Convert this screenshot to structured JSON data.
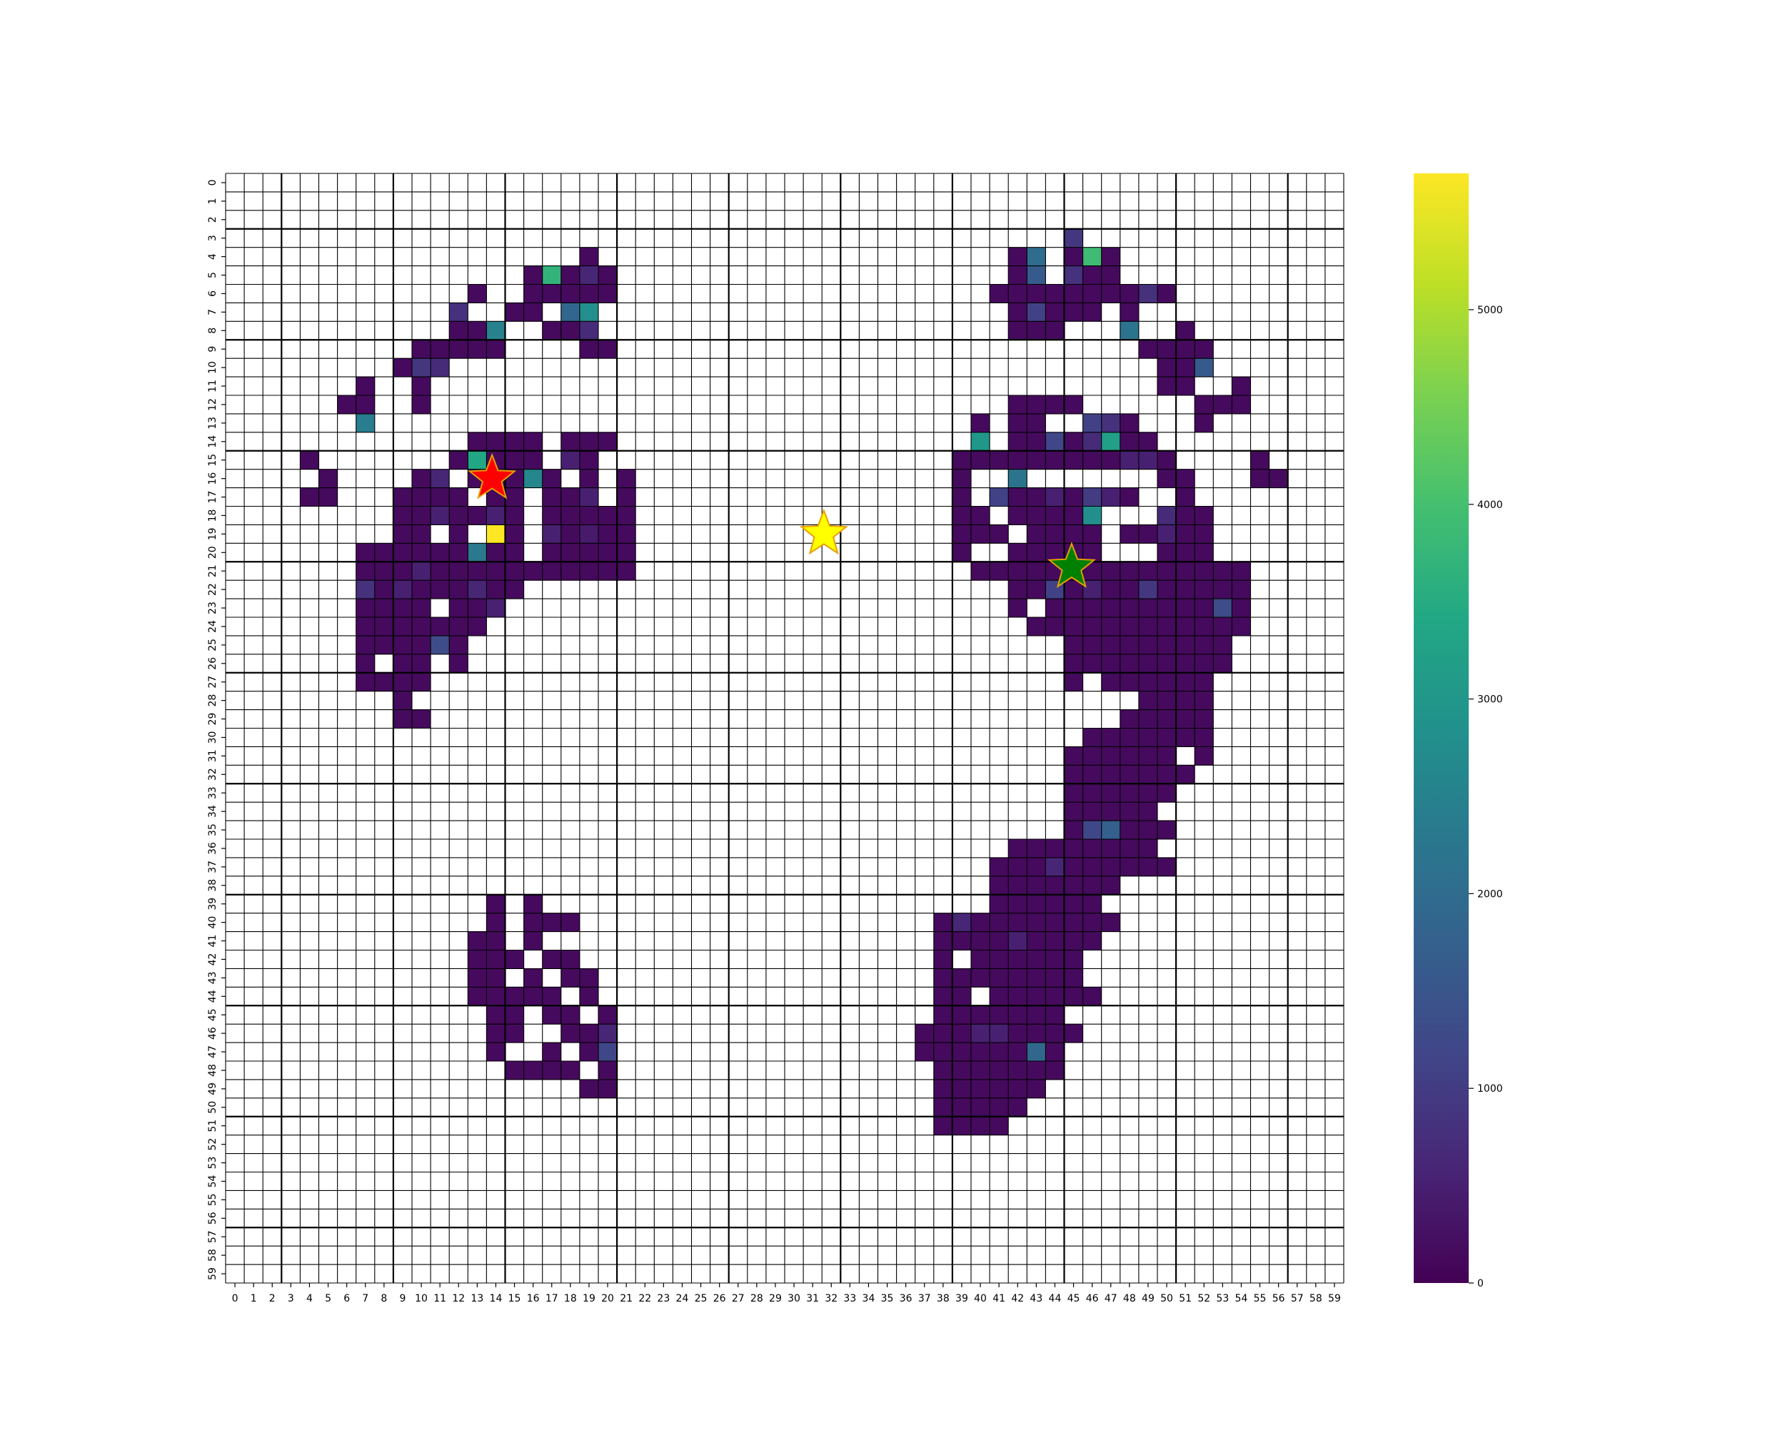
{
  "chart_data": {
    "type": "heatmap",
    "title": "",
    "xlabel": "",
    "ylabel": "",
    "grid_size": [
      60,
      60
    ],
    "x_ticks": [
      "0",
      "1",
      "2",
      "3",
      "4",
      "5",
      "6",
      "7",
      "8",
      "9",
      "10",
      "11",
      "12",
      "13",
      "14",
      "15",
      "16",
      "17",
      "18",
      "19",
      "20",
      "21",
      "22",
      "23",
      "24",
      "25",
      "26",
      "27",
      "28",
      "29",
      "30",
      "31",
      "32",
      "33",
      "34",
      "35",
      "36",
      "37",
      "38",
      "39",
      "40",
      "41",
      "42",
      "43",
      "44",
      "45",
      "46",
      "47",
      "48",
      "49",
      "50",
      "51",
      "52",
      "53",
      "54",
      "55",
      "56",
      "57",
      "58",
      "59"
    ],
    "y_ticks": [
      "0",
      "1",
      "2",
      "3",
      "4",
      "5",
      "6",
      "7",
      "8",
      "9",
      "10",
      "11",
      "12",
      "13",
      "14",
      "15",
      "16",
      "17",
      "18",
      "19",
      "20",
      "21",
      "22",
      "23",
      "24",
      "25",
      "26",
      "27",
      "28",
      "29",
      "30",
      "31",
      "32",
      "33",
      "34",
      "35",
      "36",
      "37",
      "38",
      "39",
      "40",
      "41",
      "42",
      "43",
      "44",
      "45",
      "46",
      "47",
      "48",
      "49",
      "50",
      "51",
      "52",
      "53",
      "54",
      "55",
      "56",
      "57",
      "58",
      "59"
    ],
    "colormap": "viridis",
    "colorbar": {
      "min": 0,
      "max": 5700,
      "ticks": [
        "0",
        "1000",
        "2000",
        "3000",
        "4000",
        "5000"
      ],
      "tick_values": [
        0,
        1000,
        2000,
        3000,
        4000,
        5000
      ]
    },
    "low_fill_value": 150,
    "cell_ranges": [
      [
        4,
        19,
        19
      ],
      [
        5,
        16,
        20
      ],
      [
        6,
        13,
        13
      ],
      [
        6,
        16,
        20
      ],
      [
        7,
        12,
        12
      ],
      [
        7,
        15,
        16
      ],
      [
        7,
        18,
        19
      ],
      [
        8,
        12,
        14
      ],
      [
        8,
        17,
        19
      ],
      [
        9,
        10,
        14
      ],
      [
        9,
        19,
        20
      ],
      [
        10,
        9,
        11
      ],
      [
        11,
        7,
        7
      ],
      [
        11,
        10,
        10
      ],
      [
        12,
        6,
        7
      ],
      [
        12,
        10,
        10
      ],
      [
        13,
        7,
        7
      ],
      [
        14,
        13,
        16
      ],
      [
        14,
        18,
        20
      ],
      [
        15,
        4,
        4
      ],
      [
        15,
        12,
        16
      ],
      [
        15,
        18,
        19
      ],
      [
        16,
        5,
        5
      ],
      [
        16,
        10,
        11
      ],
      [
        16,
        13,
        17
      ],
      [
        16,
        19,
        19
      ],
      [
        16,
        21,
        21
      ],
      [
        17,
        4,
        5
      ],
      [
        17,
        9,
        12
      ],
      [
        17,
        14,
        15
      ],
      [
        17,
        17,
        19
      ],
      [
        17,
        21,
        21
      ],
      [
        18,
        9,
        15
      ],
      [
        18,
        17,
        21
      ],
      [
        19,
        9,
        10
      ],
      [
        19,
        12,
        12
      ],
      [
        19,
        15,
        15
      ],
      [
        19,
        17,
        21
      ],
      [
        20,
        7,
        12
      ],
      [
        20,
        14,
        15
      ],
      [
        20,
        17,
        21
      ],
      [
        21,
        7,
        21
      ],
      [
        22,
        7,
        15
      ],
      [
        23,
        7,
        10
      ],
      [
        23,
        12,
        14
      ],
      [
        24,
        7,
        13
      ],
      [
        25,
        7,
        10
      ],
      [
        25,
        12,
        12
      ],
      [
        26,
        7,
        7
      ],
      [
        26,
        9,
        10
      ],
      [
        26,
        12,
        12
      ],
      [
        27,
        7,
        10
      ],
      [
        28,
        9,
        9
      ],
      [
        29,
        9,
        10
      ],
      [
        39,
        14,
        14
      ],
      [
        39,
        16,
        16
      ],
      [
        40,
        14,
        14
      ],
      [
        40,
        16,
        18
      ],
      [
        41,
        13,
        14
      ],
      [
        41,
        16,
        16
      ],
      [
        42,
        13,
        15
      ],
      [
        42,
        17,
        18
      ],
      [
        43,
        13,
        14
      ],
      [
        43,
        16,
        16
      ],
      [
        43,
        18,
        19
      ],
      [
        44,
        13,
        17
      ],
      [
        44,
        19,
        19
      ],
      [
        45,
        14,
        15
      ],
      [
        45,
        17,
        18
      ],
      [
        45,
        20,
        20
      ],
      [
        46,
        14,
        15
      ],
      [
        46,
        18,
        20
      ],
      [
        47,
        14,
        14
      ],
      [
        47,
        17,
        17
      ],
      [
        47,
        19,
        20
      ],
      [
        48,
        15,
        18
      ],
      [
        48,
        20,
        20
      ],
      [
        49,
        19,
        20
      ],
      [
        3,
        45,
        45
      ],
      [
        4,
        42,
        43
      ],
      [
        4,
        45,
        47
      ],
      [
        5,
        42,
        43
      ],
      [
        5,
        45,
        47
      ],
      [
        6,
        41,
        50
      ],
      [
        7,
        42,
        46
      ],
      [
        7,
        48,
        48
      ],
      [
        8,
        42,
        44
      ],
      [
        8,
        48,
        48
      ],
      [
        8,
        51,
        51
      ],
      [
        9,
        49,
        52
      ],
      [
        10,
        50,
        52
      ],
      [
        11,
        50,
        51
      ],
      [
        11,
        54,
        54
      ],
      [
        12,
        42,
        45
      ],
      [
        12,
        52,
        54
      ],
      [
        13,
        40,
        40
      ],
      [
        13,
        42,
        43
      ],
      [
        13,
        46,
        48
      ],
      [
        13,
        52,
        52
      ],
      [
        14,
        40,
        40
      ],
      [
        14,
        42,
        49
      ],
      [
        15,
        39,
        50
      ],
      [
        15,
        55,
        55
      ],
      [
        16,
        39,
        39
      ],
      [
        16,
        42,
        42
      ],
      [
        16,
        50,
        51
      ],
      [
        16,
        55,
        56
      ],
      [
        17,
        39,
        39
      ],
      [
        17,
        41,
        48
      ],
      [
        17,
        51,
        51
      ],
      [
        18,
        39,
        40
      ],
      [
        18,
        42,
        46
      ],
      [
        18,
        50,
        52
      ],
      [
        19,
        39,
        41
      ],
      [
        19,
        43,
        46
      ],
      [
        19,
        48,
        52
      ],
      [
        20,
        39,
        39
      ],
      [
        20,
        42,
        46
      ],
      [
        20,
        50,
        52
      ],
      [
        21,
        40,
        54
      ],
      [
        22,
        42,
        54
      ],
      [
        23,
        42,
        42
      ],
      [
        23,
        44,
        54
      ],
      [
        24,
        43,
        54
      ],
      [
        25,
        45,
        53
      ],
      [
        26,
        45,
        53
      ],
      [
        27,
        45,
        45
      ],
      [
        27,
        47,
        52
      ],
      [
        28,
        49,
        52
      ],
      [
        29,
        48,
        52
      ],
      [
        30,
        46,
        52
      ],
      [
        31,
        45,
        50
      ],
      [
        31,
        52,
        52
      ],
      [
        32,
        45,
        51
      ],
      [
        33,
        45,
        50
      ],
      [
        34,
        45,
        49
      ],
      [
        35,
        45,
        50
      ],
      [
        36,
        42,
        49
      ],
      [
        37,
        41,
        50
      ],
      [
        38,
        41,
        47
      ],
      [
        39,
        41,
        46
      ],
      [
        40,
        38,
        47
      ],
      [
        41,
        38,
        46
      ],
      [
        42,
        38,
        38
      ],
      [
        42,
        40,
        45
      ],
      [
        43,
        38,
        45
      ],
      [
        44,
        38,
        39
      ],
      [
        44,
        41,
        46
      ],
      [
        45,
        38,
        44
      ],
      [
        46,
        37,
        45
      ],
      [
        47,
        37,
        44
      ],
      [
        48,
        38,
        44
      ],
      [
        49,
        38,
        43
      ],
      [
        50,
        38,
        42
      ],
      [
        51,
        38,
        41
      ]
    ],
    "cells": [
      {
        "row": 5,
        "col": 17,
        "value": 3700
      },
      {
        "row": 5,
        "col": 19,
        "value": 600
      },
      {
        "row": 7,
        "col": 12,
        "value": 800
      },
      {
        "row": 7,
        "col": 18,
        "value": 1900
      },
      {
        "row": 7,
        "col": 19,
        "value": 2800
      },
      {
        "row": 8,
        "col": 14,
        "value": 2500
      },
      {
        "row": 8,
        "col": 19,
        "value": 700
      },
      {
        "row": 10,
        "col": 10,
        "value": 900
      },
      {
        "row": 10,
        "col": 11,
        "value": 700
      },
      {
        "row": 13,
        "col": 7,
        "value": 2400
      },
      {
        "row": 15,
        "col": 13,
        "value": 3400
      },
      {
        "row": 15,
        "col": 18,
        "value": 500
      },
      {
        "row": 16,
        "col": 11,
        "value": 600
      },
      {
        "row": 16,
        "col": 16,
        "value": 2600
      },
      {
        "row": 17,
        "col": 19,
        "value": 500
      },
      {
        "row": 18,
        "col": 11,
        "value": 500
      },
      {
        "row": 18,
        "col": 14,
        "value": 500
      },
      {
        "row": 19,
        "col": 14,
        "value": 5700
      },
      {
        "row": 19,
        "col": 17,
        "value": 500
      },
      {
        "row": 19,
        "col": 19,
        "value": 400
      },
      {
        "row": 20,
        "col": 13,
        "value": 2300
      },
      {
        "row": 21,
        "col": 10,
        "value": 500
      },
      {
        "row": 22,
        "col": 7,
        "value": 800
      },
      {
        "row": 22,
        "col": 9,
        "value": 500
      },
      {
        "row": 22,
        "col": 13,
        "value": 600
      },
      {
        "row": 23,
        "col": 14,
        "value": 500
      },
      {
        "row": 25,
        "col": 11,
        "value": 1300
      },
      {
        "row": 46,
        "col": 20,
        "value": 600
      },
      {
        "row": 47,
        "col": 20,
        "value": 1200
      },
      {
        "row": 4,
        "col": 43,
        "value": 2000
      },
      {
        "row": 4,
        "col": 46,
        "value": 3900
      },
      {
        "row": 3,
        "col": 45,
        "value": 900
      },
      {
        "row": 5,
        "col": 43,
        "value": 1600
      },
      {
        "row": 5,
        "col": 45,
        "value": 800
      },
      {
        "row": 6,
        "col": 49,
        "value": 800
      },
      {
        "row": 7,
        "col": 43,
        "value": 1100
      },
      {
        "row": 8,
        "col": 48,
        "value": 2200
      },
      {
        "row": 10,
        "col": 52,
        "value": 1600
      },
      {
        "row": 13,
        "col": 46,
        "value": 1100
      },
      {
        "row": 13,
        "col": 47,
        "value": 800
      },
      {
        "row": 14,
        "col": 40,
        "value": 3000
      },
      {
        "row": 14,
        "col": 44,
        "value": 1200
      },
      {
        "row": 14,
        "col": 46,
        "value": 700
      },
      {
        "row": 14,
        "col": 47,
        "value": 3200
      },
      {
        "row": 15,
        "col": 48,
        "value": 500
      },
      {
        "row": 15,
        "col": 49,
        "value": 500
      },
      {
        "row": 16,
        "col": 42,
        "value": 2200
      },
      {
        "row": 17,
        "col": 41,
        "value": 1100
      },
      {
        "row": 17,
        "col": 44,
        "value": 500
      },
      {
        "row": 17,
        "col": 46,
        "value": 1000
      },
      {
        "row": 17,
        "col": 47,
        "value": 500
      },
      {
        "row": 18,
        "col": 46,
        "value": 2800
      },
      {
        "row": 18,
        "col": 50,
        "value": 700
      },
      {
        "row": 19,
        "col": 50,
        "value": 500
      },
      {
        "row": 22,
        "col": 44,
        "value": 1100
      },
      {
        "row": 22,
        "col": 49,
        "value": 900
      },
      {
        "row": 22,
        "col": 46,
        "value": 500
      },
      {
        "row": 23,
        "col": 53,
        "value": 1300
      },
      {
        "row": 35,
        "col": 46,
        "value": 1200
      },
      {
        "row": 35,
        "col": 47,
        "value": 1700
      },
      {
        "row": 37,
        "col": 44,
        "value": 600
      },
      {
        "row": 40,
        "col": 39,
        "value": 600
      },
      {
        "row": 41,
        "col": 42,
        "value": 500
      },
      {
        "row": 46,
        "col": 40,
        "value": 500
      },
      {
        "row": 46,
        "col": 41,
        "value": 500
      },
      {
        "row": 47,
        "col": 43,
        "value": 1900
      }
    ],
    "markers": [
      {
        "symbol": "star",
        "row": 16,
        "col": 13.8,
        "color": "#ff0000"
      },
      {
        "symbol": "star",
        "row": 19,
        "col": 31.6,
        "color": "#ffff00"
      },
      {
        "symbol": "star",
        "row": 20.8,
        "col": 44.9,
        "color": "#008000"
      }
    ]
  }
}
